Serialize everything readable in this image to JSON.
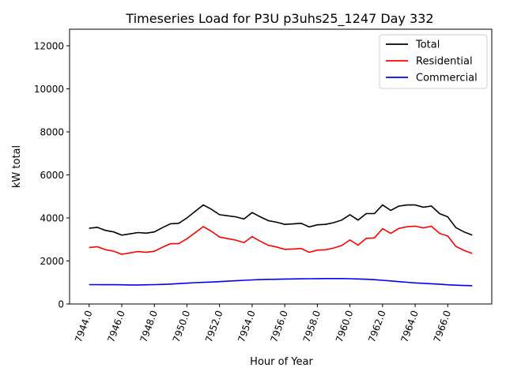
{
  "chart_data": {
    "type": "line",
    "title": "Timeseries Load for P3U p3uhs25_1247  Day 332",
    "xlabel": "Hour of Year",
    "ylabel": "kW total",
    "xlim": [
      7942.8,
      7968.7
    ],
    "ylim": [
      0,
      12770
    ],
    "xticks": [
      7944,
      7946,
      7948,
      7950,
      7952,
      7954,
      7956,
      7958,
      7960,
      7962,
      7964,
      7966
    ],
    "xtick_labels": [
      "7944.0",
      "7946.0",
      "7948.0",
      "7950.0",
      "7952.0",
      "7954.0",
      "7956.0",
      "7958.0",
      "7960.0",
      "7962.0",
      "7964.0",
      "7966.0"
    ],
    "yticks": [
      0,
      2000,
      4000,
      6000,
      8000,
      10000,
      12000
    ],
    "ytick_labels": [
      "0",
      "2000",
      "4000",
      "6000",
      "8000",
      "10000",
      "12000"
    ],
    "grid": false,
    "legend_position": "top-right",
    "x_start": 7944,
    "x_step": 0.5,
    "series": [
      {
        "name": "Total",
        "color": "#000000",
        "values": [
          3520,
          3560,
          3420,
          3350,
          3200,
          3260,
          3320,
          3290,
          3350,
          3550,
          3730,
          3750,
          4000,
          4300,
          4600,
          4400,
          4150,
          4100,
          4050,
          3950,
          4250,
          4050,
          3870,
          3800,
          3700,
          3720,
          3750,
          3580,
          3680,
          3700,
          3780,
          3900,
          4150,
          3900,
          4200,
          4200,
          4600,
          4350,
          4550,
          4600,
          4600,
          4500,
          4550,
          4200,
          4050,
          3550,
          3350,
          3200
        ]
      },
      {
        "name": "Residential",
        "color": "#ff0000",
        "values": [
          2620,
          2660,
          2525,
          2455,
          2310,
          2375,
          2435,
          2400,
          2450,
          2640,
          2805,
          2805,
          3030,
          3310,
          3595,
          3380,
          3110,
          3040,
          2970,
          2850,
          3130,
          2915,
          2725,
          2650,
          2540,
          2555,
          2580,
          2405,
          2502,
          2520,
          2600,
          2720,
          2975,
          2735,
          3050,
          3070,
          3500,
          3280,
          3510,
          3590,
          3620,
          3540,
          3610,
          3280,
          3160,
          2675,
          2490,
          2350
        ]
      },
      {
        "name": "Commercial",
        "color": "#0000ff",
        "values": [
          900,
          900,
          895,
          895,
          890,
          885,
          885,
          890,
          900,
          910,
          925,
          945,
          970,
          990,
          1005,
          1020,
          1040,
          1060,
          1080,
          1100,
          1120,
          1135,
          1145,
          1150,
          1160,
          1165,
          1170,
          1175,
          1178,
          1180,
          1180,
          1180,
          1175,
          1165,
          1150,
          1130,
          1100,
          1070,
          1040,
          1010,
          980,
          960,
          940,
          920,
          890,
          875,
          860,
          850
        ]
      }
    ]
  }
}
